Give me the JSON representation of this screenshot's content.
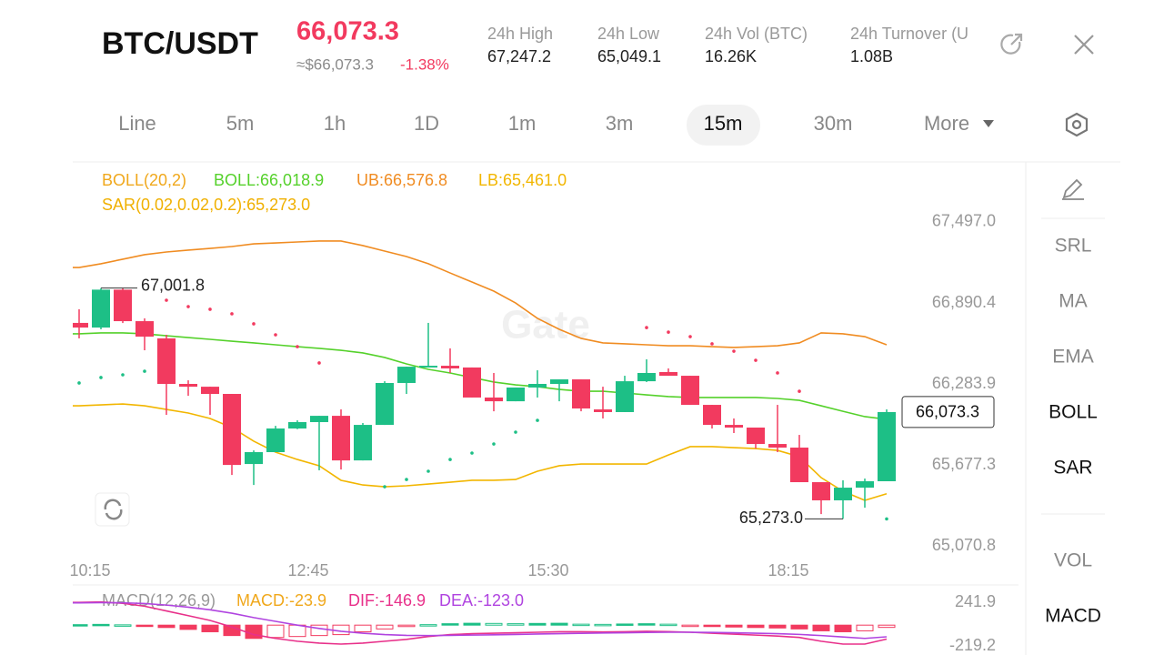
{
  "header": {
    "pair": "BTC/USDT",
    "price": "66,073.3",
    "approx": "≈$66,073.3",
    "change": "-1.38%",
    "stats": [
      {
        "label": "24h High",
        "value": "67,247.2"
      },
      {
        "label": "24h Low",
        "value": "65,049.1"
      },
      {
        "label": "24h Vol (BTC)",
        "value": "16.26K"
      },
      {
        "label": "24h Turnover (U",
        "value": "1.08B"
      }
    ]
  },
  "tabs": [
    "Line",
    "5m",
    "1h",
    "1D",
    "1m",
    "3m",
    "15m",
    "30m",
    "More"
  ],
  "active_tab": 6,
  "indicators": [
    {
      "text": "SRL",
      "active": false
    },
    {
      "text": "MA",
      "active": false
    },
    {
      "text": "EMA",
      "active": false
    },
    {
      "text": "BOLL",
      "active": true
    },
    {
      "text": "SAR",
      "active": true
    },
    {
      "text": "VOL",
      "active": false
    },
    {
      "text": "MACD",
      "active": true
    }
  ],
  "watermark": "Gate",
  "chart_data": [
    {
      "type": "candlestick",
      "up_color": "#1dbf86",
      "down_color": "#f23a5f",
      "legend": [
        {
          "text": "BOLL(20,2)",
          "color": "#f0a81c"
        },
        {
          "text": "BOLL:66,018.9",
          "color": "#55d12b"
        },
        {
          "text": "UB:66,576.8",
          "color": "#f08c22"
        },
        {
          "text": "LB:65,461.0",
          "color": "#f2b600"
        },
        {
          "text": "SAR(0.02,0.02,0.2):65,273.0",
          "color": "#f0b000"
        }
      ],
      "categories": [
        null,
        "10:15",
        null,
        null,
        null,
        null,
        null,
        null,
        null,
        null,
        null,
        "12:45",
        null,
        null,
        null,
        null,
        null,
        null,
        null,
        null,
        null,
        null,
        "15:30",
        null,
        null,
        null,
        null,
        null,
        null,
        null,
        null,
        null,
        null,
        "18:15",
        null,
        null,
        null,
        null
      ],
      "open": [
        66741,
        66706,
        66990,
        66754,
        66625,
        66284,
        66263,
        66209,
        65684,
        65773,
        65950,
        65998,
        66045,
        65711,
        65977,
        66291,
        66407,
        66420,
        66407,
        66182,
        66154,
        66257,
        66284,
        66318,
        66093,
        66073,
        66304,
        66373,
        66345,
        66127,
        65977,
        65957,
        65834,
        65807,
        65548,
        65412,
        65507,
        65555
      ],
      "high": [
        66843,
        67001.8,
        67000,
        66775,
        66652,
        66311,
        66263,
        66209,
        65786,
        65970,
        66011,
        66045,
        66093,
        65991,
        66304,
        66413,
        66741,
        66550,
        66407,
        66366,
        66257,
        66386,
        66318,
        66318,
        66263,
        66345,
        66468,
        66400,
        66345,
        66127,
        66025,
        65957,
        66127,
        65902,
        65548,
        65562,
        65575,
        66093
      ],
      "low": [
        66625,
        66693,
        66740,
        66536,
        66052,
        66195,
        66052,
        65602,
        65527,
        65773,
        65945,
        65637,
        65643,
        65711,
        65977,
        66209,
        66407,
        66366,
        66182,
        66079,
        66154,
        66182,
        66154,
        66079,
        66025,
        66073,
        66298,
        66345,
        66127,
        65950,
        65916,
        65800,
        65773,
        65548,
        65309,
        65273.0,
        65357,
        65555
      ],
      "close": [
        66706,
        66990,
        66754,
        66638,
        66284,
        66263,
        66209,
        65677,
        65773,
        65950,
        65998,
        66045,
        65711,
        65977,
        66291,
        66413,
        66420,
        66400,
        66182,
        66154,
        66257,
        66284,
        66318,
        66100,
        66073,
        66304,
        66366,
        66345,
        66127,
        65977,
        65957,
        65834,
        65807,
        65548,
        65412,
        65507,
        65555,
        66073.3
      ],
      "overlays": [
        {
          "color": "#f08c22",
          "values": [
            67156,
            67184,
            67218,
            67252,
            67272,
            67286,
            67299,
            67313,
            67333,
            67340,
            67347,
            67354,
            67354,
            67320,
            67279,
            67238,
            67184,
            67115,
            67047,
            66979,
            66890,
            66775,
            66693,
            66625,
            66591,
            66584,
            66577,
            66570,
            66570,
            66563,
            66557,
            66563,
            66570,
            66591,
            66666,
            66659,
            66638,
            66576.8
          ]
        },
        {
          "color": "#55d12b",
          "values": [
            66659,
            66666,
            66666,
            66659,
            66645,
            66631,
            66618,
            66604,
            66591,
            66577,
            66563,
            66550,
            66536,
            66516,
            66482,
            66434,
            66393,
            66366,
            66332,
            66298,
            66277,
            66263,
            66243,
            66229,
            66229,
            66216,
            66202,
            66189,
            66182,
            66182,
            66182,
            66182,
            66175,
            66161,
            66120,
            66079,
            66039,
            66018.9
          ]
        },
        {
          "color": "#f2b600",
          "values": [
            66120,
            66127,
            66134,
            66120,
            66093,
            66066,
            66025,
            65957,
            65855,
            65773,
            65718,
            65671,
            65562,
            65527,
            65514,
            65521,
            65534,
            65548,
            65562,
            65562,
            65568,
            65630,
            65671,
            65684,
            65684,
            65684,
            65684,
            65752,
            65814,
            65814,
            65807,
            65800,
            65786,
            65739,
            65582,
            65480,
            65412,
            65461.0
          ]
        }
      ],
      "sar": [
        66291,
        66332,
        66352,
        66379,
        66911,
        66863,
        66843,
        66809,
        66734,
        66652,
        66563,
        66441,
        null,
        null,
        65514,
        65568,
        65630,
        65718,
        65766,
        65834,
        65923,
        66011,
        null,
        null,
        null,
        null,
        66706,
        66672,
        66638,
        66584,
        66529,
        66461,
        66366,
        66229,
        null,
        null,
        null,
        65273.0
      ],
      "ylim": [
        64969,
        67933
      ],
      "yticks": [
        {
          "value": 67497.0,
          "label": "67,497.0"
        },
        {
          "value": 66890.4,
          "label": "66,890.4"
        },
        {
          "value": 66283.9,
          "label": "66,283.9"
        },
        {
          "value": 65677.3,
          "label": "65,677.3"
        },
        {
          "value": 65070.8,
          "label": "65,070.8"
        }
      ],
      "grid": false,
      "high_label": {
        "value": 67001.8,
        "label": "67,001.8"
      },
      "low_label": {
        "value": 65273.0,
        "label": "65,273.0"
      },
      "last_label": {
        "value": 66073.3,
        "label": "66,073.3"
      }
    },
    {
      "type": "macd",
      "up_color": "#1dbf86",
      "down_color": "#f23a5f",
      "legend": [
        {
          "text": "MACD(12,26,9)",
          "color": "#999999"
        },
        {
          "text": "MACD:-23.9",
          "color": "#f0a81c"
        },
        {
          "text": "DIF:-146.9",
          "color": "#e8308a"
        },
        {
          "text": "DEA:-123.0",
          "color": "#b044e0"
        }
      ],
      "values": [
        5,
        8,
        3,
        -10,
        -25,
        -45,
        -70,
        -110,
        -140,
        -130,
        -120,
        -110,
        -100,
        -70,
        -40,
        -15,
        5,
        15,
        20,
        18,
        15,
        18,
        20,
        10,
        8,
        12,
        15,
        10,
        -5,
        -15,
        -20,
        -25,
        -30,
        -40,
        -60,
        -70,
        -60,
        -23.9
      ],
      "series": [
        {
          "color": "#e8308a",
          "values": [
            240,
            245,
            230,
            200,
            150,
            100,
            50,
            -20,
            -100,
            -140,
            -170,
            -190,
            -200,
            -190,
            -170,
            -150,
            -120,
            -100,
            -90,
            -85,
            -80,
            -75,
            -70,
            -70,
            -72,
            -70,
            -65,
            -68,
            -75,
            -85,
            -95,
            -105,
            -115,
            -130,
            -170,
            -200,
            -200,
            -146.9
          ]
        },
        {
          "color": "#b044e0",
          "values": [
            235,
            238,
            236,
            228,
            212,
            190,
            162,
            126,
            80,
            40,
            0,
            -35,
            -65,
            -85,
            -100,
            -108,
            -110,
            -108,
            -105,
            -102,
            -98,
            -94,
            -90,
            -86,
            -83,
            -80,
            -77,
            -75,
            -75,
            -77,
            -80,
            -85,
            -90,
            -98,
            -110,
            -125,
            -140,
            -123.0
          ]
        }
      ],
      "ylim": [
        -296,
        357.2
      ],
      "yticks": [
        241.9,
        -219.2
      ]
    }
  ]
}
